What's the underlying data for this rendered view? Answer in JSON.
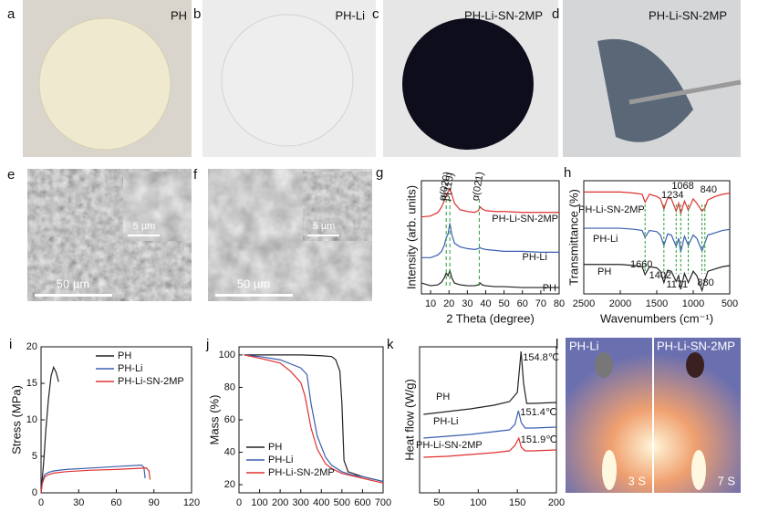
{
  "photos": [
    {
      "panel": "a",
      "caption": "PH"
    },
    {
      "panel": "b",
      "caption": "PH-Li"
    },
    {
      "panel": "c",
      "caption": "PH-Li-SN-2MP"
    },
    {
      "panel": "d",
      "caption": "PH-Li-SN-2MP"
    }
  ],
  "sem": [
    {
      "panel": "e",
      "scale": "50 µm",
      "inset_scale": "5 µm"
    },
    {
      "panel": "f",
      "scale": "50 µm",
      "inset_scale": "5 µm"
    }
  ],
  "flame": {
    "panel": "l",
    "captions": [
      "PH-Li",
      "PH-Li-SN-2MP"
    ],
    "times": [
      "3 S",
      "7 S"
    ]
  },
  "chart_data": [
    {
      "type": "line",
      "panel": "g",
      "x_label": "2 Theta (degree)",
      "y_label": "Intensity (arb. units)",
      "legend": "inline",
      "xlim": [
        5,
        80
      ],
      "xticks": [
        10,
        20,
        30,
        40,
        50,
        60,
        70,
        80
      ],
      "ylim": [
        0,
        12.5
      ],
      "x": [
        5,
        10,
        14,
        16,
        17.5,
        18.5,
        19.5,
        20.5,
        21.5,
        23,
        26,
        30,
        34,
        36,
        37,
        38,
        40,
        45,
        50,
        60,
        70,
        80
      ],
      "series": [
        {
          "name": "PH",
          "color": "#222222",
          "values": [
            1.2,
            0.9,
            1.0,
            1.3,
            1.8,
            2.3,
            2.0,
            2.6,
            1.8,
            1.2,
            1.0,
            0.9,
            0.9,
            1.0,
            1.2,
            1.0,
            0.9,
            0.8,
            0.8,
            0.7,
            0.7,
            0.7
          ]
        },
        {
          "name": "PH-Li",
          "color": "#3a5fb0",
          "values": [
            4.0,
            4.0,
            4.3,
            4.7,
            5.4,
            6.2,
            6.6,
            7.8,
            6.6,
            5.6,
            5.2,
            5.0,
            4.9,
            5.0,
            5.1,
            5.0,
            4.9,
            4.8,
            4.7,
            4.7,
            4.6,
            4.6
          ]
        },
        {
          "name": "PH-Li-SN-2MP",
          "color": "#e03030",
          "values": [
            8.5,
            8.6,
            9.0,
            9.6,
            10.3,
            10.8,
            11.3,
            11.6,
            11.0,
            10.0,
            9.3,
            9.1,
            9.0,
            9.2,
            9.6,
            9.4,
            9.2,
            9.1,
            9.1,
            9.0,
            9.0,
            9.0
          ]
        }
      ],
      "annotations": [
        {
          "text": "α(020)",
          "x": 18.5
        },
        {
          "text": "β(110)",
          "x": 20.5
        },
        {
          "text": "α(021)",
          "x": 36.5
        }
      ]
    },
    {
      "type": "line",
      "panel": "h",
      "x_label": "Wavenumbers (cm⁻¹)",
      "y_label": "Transmittance (%)",
      "legend": "inline",
      "xlim": [
        2500,
        500
      ],
      "xticks": [
        2500,
        2000,
        1500,
        1000,
        500
      ],
      "ylim": [
        0,
        10
      ],
      "x": [
        2500,
        2200,
        2000,
        1800,
        1700,
        1660,
        1600,
        1500,
        1450,
        1402,
        1350,
        1300,
        1234,
        1200,
        1171,
        1120,
        1068,
        1000,
        950,
        880,
        840,
        800,
        700,
        600,
        500
      ],
      "series": [
        {
          "name": "PH",
          "color": "#222222",
          "values": [
            2.6,
            2.6,
            2.6,
            2.5,
            2.4,
            1.7,
            2.4,
            2.3,
            2.0,
            1.0,
            2.1,
            2.0,
            1.1,
            1.6,
            0.4,
            1.8,
            1.0,
            2.0,
            1.6,
            0.3,
            1.2,
            2.0,
            2.2,
            2.4,
            2.5
          ]
        },
        {
          "name": "PH-Li",
          "color": "#3a5fb0",
          "values": [
            5.8,
            5.8,
            5.8,
            5.7,
            5.6,
            5.0,
            5.6,
            5.5,
            5.2,
            4.3,
            5.3,
            5.2,
            4.2,
            4.9,
            3.7,
            5.1,
            4.3,
            5.2,
            4.9,
            3.8,
            4.5,
            5.2,
            5.4,
            5.6,
            5.7
          ]
        },
        {
          "name": "PH-Li-SN-2MP",
          "color": "#e03030",
          "values": [
            9.0,
            9.0,
            9.0,
            8.9,
            8.8,
            8.1,
            8.8,
            8.6,
            8.4,
            7.5,
            8.5,
            8.4,
            7.3,
            8.0,
            7.1,
            8.2,
            7.4,
            8.4,
            8.0,
            7.3,
            7.6,
            8.3,
            8.6,
            8.8,
            8.9
          ]
        }
      ],
      "peaks": [
        1234,
        1068,
        840,
        1660,
        1402,
        1171,
        880
      ]
    },
    {
      "type": "line",
      "panel": "i",
      "x_label": "Strain (%)",
      "y_label": "Stress (MPa)",
      "legend": "upper right",
      "xlim": [
        0,
        120
      ],
      "xticks": [
        0,
        30,
        60,
        90,
        120
      ],
      "ylim": [
        0,
        20
      ],
      "yticks": [
        0,
        5,
        10,
        15,
        20
      ],
      "series": [
        {
          "name": "PH",
          "color": "#222222",
          "x": [
            0,
            2,
            4,
            6,
            8,
            10,
            12,
            14
          ],
          "values": [
            0,
            4,
            9,
            13,
            16,
            17.2,
            16.5,
            15.2
          ]
        },
        {
          "name": "PH-Li",
          "color": "#3a5fb0",
          "x": [
            0,
            1,
            3,
            6,
            10,
            20,
            40,
            60,
            80,
            82,
            83
          ],
          "values": [
            0,
            1.5,
            2.5,
            2.8,
            3.0,
            3.2,
            3.4,
            3.6,
            3.8,
            3.5,
            2.0
          ]
        },
        {
          "name": "PH-Li-SN-2MP",
          "color": "#e03030",
          "x": [
            0,
            1,
            3,
            6,
            10,
            20,
            40,
            60,
            84,
            86,
            87
          ],
          "values": [
            0,
            1.3,
            2.2,
            2.5,
            2.7,
            2.9,
            3.1,
            3.2,
            3.4,
            3.0,
            1.8
          ]
        }
      ]
    },
    {
      "type": "line",
      "panel": "j",
      "x_label": "Temperature (℃)",
      "y_label": "Mass (%)",
      "legend": "lower left",
      "xlim": [
        0,
        700
      ],
      "xticks": [
        0,
        100,
        200,
        300,
        400,
        500,
        600,
        700
      ],
      "ylim": [
        15,
        105
      ],
      "yticks": [
        20,
        40,
        60,
        80,
        100
      ],
      "series": [
        {
          "name": "PH",
          "color": "#222222",
          "x": [
            25,
            100,
            200,
            300,
            400,
            450,
            470,
            490,
            500,
            510,
            530,
            600,
            700
          ],
          "values": [
            100,
            100,
            100,
            100,
            99.5,
            99,
            97,
            90,
            70,
            35,
            28,
            25,
            22
          ]
        },
        {
          "name": "PH-Li",
          "color": "#3a5fb0",
          "x": [
            25,
            100,
            200,
            300,
            330,
            350,
            380,
            420,
            450,
            500,
            550,
            600,
            700
          ],
          "values": [
            100,
            99,
            97,
            92,
            88,
            70,
            50,
            37,
            32,
            28,
            26,
            25,
            22
          ]
        },
        {
          "name": "PH-Li-SN-2MP",
          "color": "#e03030",
          "x": [
            25,
            100,
            200,
            250,
            300,
            320,
            350,
            380,
            420,
            450,
            500,
            600,
            700
          ],
          "values": [
            100,
            98,
            95,
            90,
            83,
            75,
            55,
            42,
            33,
            30,
            27,
            24,
            21
          ]
        }
      ]
    },
    {
      "type": "line",
      "panel": "k",
      "x_label": "Temperature (°C)",
      "y_label": "Heat flow (W/g)",
      "legend": "inline",
      "xlim": [
        25,
        200
      ],
      "xticks": [
        50,
        100,
        150,
        200
      ],
      "ylim": [
        0,
        16
      ],
      "series": [
        {
          "name": "PH",
          "color": "#222222",
          "x": [
            30,
            60,
            90,
            120,
            140,
            150,
            154.8,
            158,
            162,
            170,
            200
          ],
          "values": [
            8.6,
            8.9,
            9.2,
            9.6,
            10.0,
            11.0,
            15.5,
            12.0,
            9.8,
            9.8,
            9.9
          ]
        },
        {
          "name": "PH-Li",
          "color": "#3a5fb0",
          "x": [
            30,
            60,
            90,
            120,
            140,
            147,
            151.4,
            155,
            160,
            170,
            200
          ],
          "values": [
            6.0,
            6.2,
            6.4,
            6.7,
            6.9,
            7.5,
            9.0,
            7.7,
            7.1,
            7.1,
            7.2
          ]
        },
        {
          "name": "PH-Li-SN-2MP",
          "color": "#e03030",
          "x": [
            30,
            60,
            90,
            120,
            140,
            147,
            151.9,
            155,
            160,
            170,
            200
          ],
          "values": [
            3.9,
            4.0,
            4.2,
            4.4,
            4.6,
            5.2,
            6.0,
            5.0,
            4.6,
            4.6,
            4.7
          ]
        }
      ],
      "peaks": [
        {
          "value": 154.8,
          "label": "154.8℃"
        },
        {
          "value": 151.4,
          "label": "151.4℃"
        },
        {
          "value": 151.9,
          "label": "151.9℃"
        }
      ]
    }
  ]
}
